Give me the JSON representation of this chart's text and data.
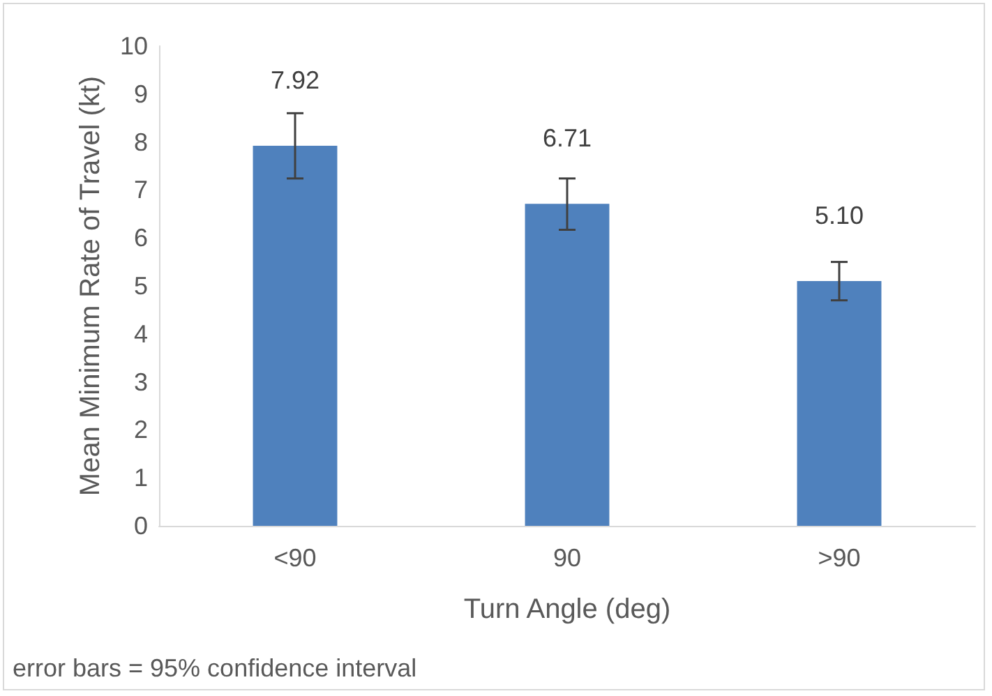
{
  "chart_data": {
    "type": "bar",
    "xlabel": "Turn Angle (deg)",
    "ylabel": "Mean Minimum Rate of Travel (kt)",
    "categories": [
      "<90",
      "90",
      ">90"
    ],
    "values": [
      7.92,
      6.71,
      5.1
    ],
    "value_labels": [
      "7.92",
      "6.71",
      "5.10"
    ],
    "errors": [
      [
        7.24,
        8.6
      ],
      [
        6.17,
        7.24
      ],
      [
        4.7,
        5.5
      ]
    ],
    "color": "#4f81bd",
    "ylim": [
      0,
      10
    ],
    "yticks": [
      0,
      1,
      2,
      3,
      4,
      5,
      6,
      7,
      8,
      9,
      10
    ],
    "annotations": [
      "error bars = 95% confidence interval"
    ]
  }
}
